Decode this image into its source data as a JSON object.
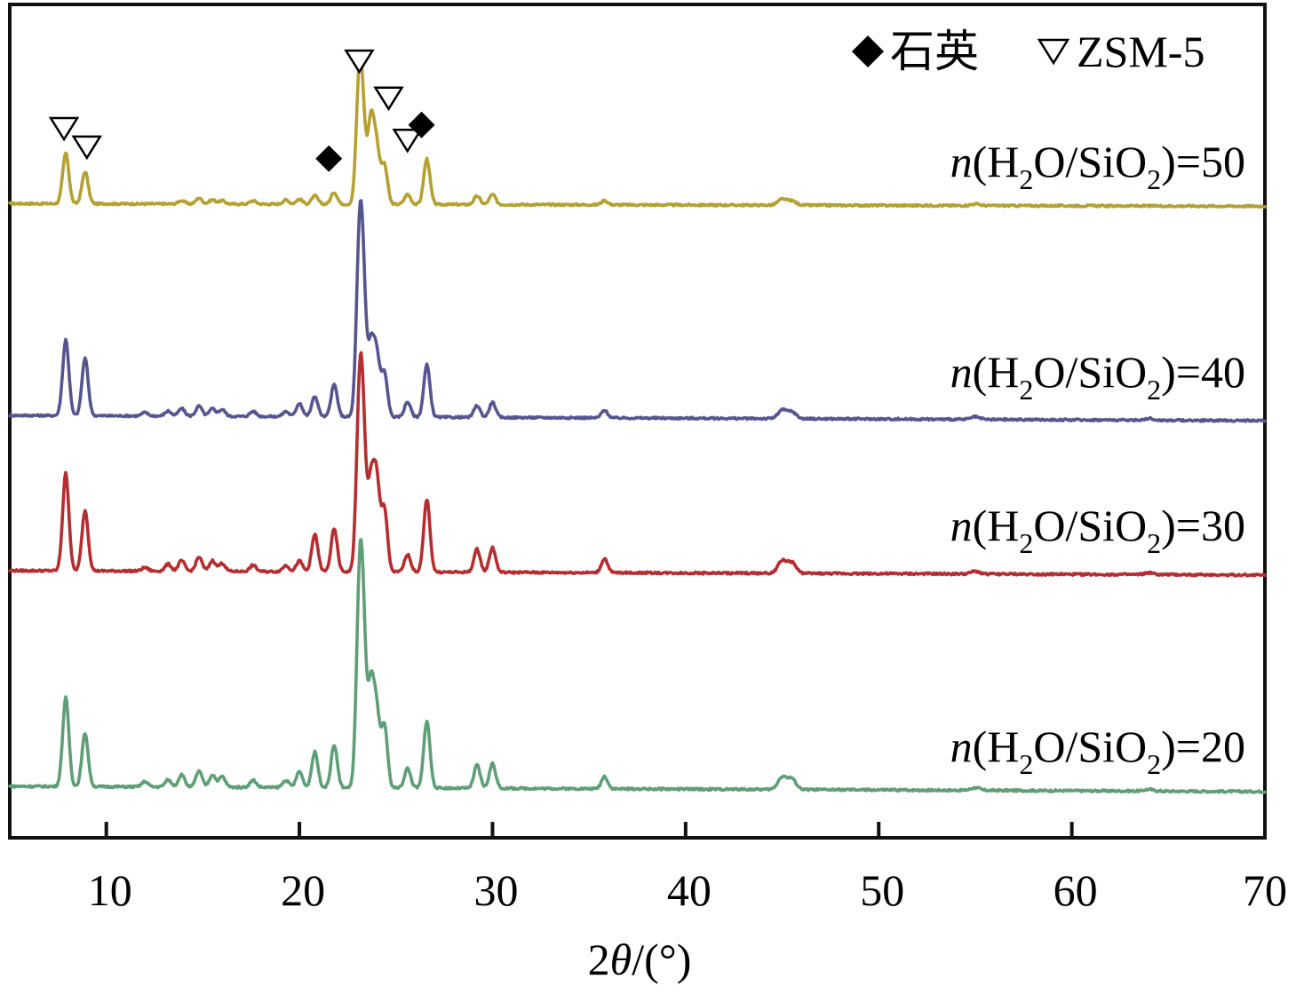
{
  "chart_data": {
    "type": "line",
    "title": "",
    "xlabel_prefix": "2",
    "xlabel_theta": "θ",
    "xlabel_suffix": "/(°)",
    "ylabel": "",
    "xlim": [
      5,
      70
    ],
    "x_ticks": [
      10,
      20,
      30,
      40,
      50,
      60,
      70
    ],
    "x_tick_labels": [
      "10",
      "20",
      "30",
      "40",
      "50",
      "60",
      "70"
    ],
    "legend": {
      "position": "top-right",
      "entries": [
        {
          "marker": "diamond",
          "name": "石英"
        },
        {
          "marker": "triangle-down-open",
          "name": "ZSM-5"
        }
      ]
    },
    "series": [
      {
        "name": "n(H2O/SiO2)=50",
        "label_n": "n",
        "label_a": "(H",
        "label_sub1": "2",
        "label_b": "O/SiO",
        "label_sub2": "2",
        "label_c": ")=50",
        "color": "#b5a032",
        "baseline": 8,
        "peaks": [
          [
            7.9,
            60
          ],
          [
            8.9,
            38
          ],
          [
            13.9,
            4
          ],
          [
            14.8,
            7
          ],
          [
            15.5,
            5
          ],
          [
            16.0,
            4
          ],
          [
            17.6,
            4
          ],
          [
            19.3,
            5
          ],
          [
            20.0,
            6
          ],
          [
            20.8,
            10
          ],
          [
            21.8,
            14
          ],
          [
            23.1,
            140
          ],
          [
            23.3,
            70
          ],
          [
            23.7,
            96
          ],
          [
            24.0,
            64
          ],
          [
            24.4,
            46
          ],
          [
            25.6,
            12
          ],
          [
            26.6,
            54
          ],
          [
            29.2,
            10
          ],
          [
            30.0,
            12
          ],
          [
            35.8,
            5
          ],
          [
            45.0,
            7
          ],
          [
            45.5,
            5
          ],
          [
            55.0,
            2
          ]
        ],
        "quartz_peaks": [
          21.8,
          26.6
        ],
        "zsm5_peaks": [
          7.9,
          8.9,
          23.1,
          23.7,
          24.4
        ]
      },
      {
        "name": "n(H2O/SiO2)=40",
        "label_n": "n",
        "label_a": "(H",
        "label_sub1": "2",
        "label_b": "O/SiO",
        "label_sub2": "2",
        "label_c": ")=40",
        "color": "#56558f",
        "baseline": 6,
        "peaks": [
          [
            7.9,
            90
          ],
          [
            8.9,
            68
          ],
          [
            12.0,
            4
          ],
          [
            13.2,
            6
          ],
          [
            13.9,
            9
          ],
          [
            14.8,
            12
          ],
          [
            15.5,
            9
          ],
          [
            16.0,
            8
          ],
          [
            17.6,
            6
          ],
          [
            19.3,
            6
          ],
          [
            20.0,
            16
          ],
          [
            20.8,
            24
          ],
          [
            21.8,
            38
          ],
          [
            23.1,
            180
          ],
          [
            23.3,
            130
          ],
          [
            23.7,
            80
          ],
          [
            24.0,
            70
          ],
          [
            24.4,
            52
          ],
          [
            25.6,
            18
          ],
          [
            26.6,
            62
          ],
          [
            29.2,
            14
          ],
          [
            30.0,
            18
          ],
          [
            35.8,
            9
          ],
          [
            45.0,
            10
          ],
          [
            45.5,
            8
          ],
          [
            55.0,
            3
          ],
          [
            64.0,
            2
          ]
        ]
      },
      {
        "name": "n(H2O/SiO2)=30",
        "label_n": "n",
        "label_a": "(H",
        "label_sub1": "2",
        "label_b": "O/SiO",
        "label_sub2": "2",
        "label_c": ")=30",
        "color": "#b52d30",
        "baseline": 6,
        "peaks": [
          [
            7.9,
            110
          ],
          [
            8.9,
            68
          ],
          [
            12.0,
            4
          ],
          [
            13.2,
            8
          ],
          [
            13.9,
            12
          ],
          [
            14.8,
            16
          ],
          [
            15.5,
            12
          ],
          [
            16.0,
            9
          ],
          [
            17.6,
            7
          ],
          [
            19.3,
            7
          ],
          [
            20.0,
            12
          ],
          [
            20.8,
            42
          ],
          [
            21.8,
            48
          ],
          [
            23.1,
            168
          ],
          [
            23.3,
            130
          ],
          [
            23.7,
            95
          ],
          [
            24.0,
            100
          ],
          [
            24.4,
            70
          ],
          [
            25.6,
            20
          ],
          [
            26.6,
            82
          ],
          [
            29.2,
            26
          ],
          [
            30.0,
            28
          ],
          [
            35.8,
            16
          ],
          [
            45.0,
            14
          ],
          [
            45.5,
            12
          ],
          [
            55.0,
            3
          ],
          [
            64.0,
            2
          ]
        ]
      },
      {
        "name": "n(H2O/SiO2)=20",
        "label_n": "n",
        "label_a": "(H",
        "label_sub1": "2",
        "label_b": "O/SiO",
        "label_sub2": "2",
        "label_c": ")=20",
        "color": "#5f9e77",
        "baseline": 6,
        "peaks": [
          [
            7.9,
            100
          ],
          [
            8.9,
            60
          ],
          [
            12.0,
            6
          ],
          [
            13.2,
            8
          ],
          [
            13.9,
            14
          ],
          [
            14.8,
            18
          ],
          [
            15.5,
            14
          ],
          [
            16.0,
            12
          ],
          [
            17.6,
            8
          ],
          [
            19.3,
            8
          ],
          [
            20.0,
            18
          ],
          [
            20.8,
            40
          ],
          [
            21.8,
            48
          ],
          [
            23.1,
            190
          ],
          [
            23.3,
            150
          ],
          [
            23.7,
            110
          ],
          [
            24.0,
            80
          ],
          [
            24.4,
            70
          ],
          [
            25.6,
            22
          ],
          [
            26.6,
            76
          ],
          [
            29.2,
            26
          ],
          [
            30.0,
            28
          ],
          [
            35.8,
            14
          ],
          [
            45.0,
            14
          ],
          [
            45.5,
            12
          ],
          [
            55.0,
            3
          ],
          [
            64.0,
            2
          ]
        ]
      }
    ]
  }
}
